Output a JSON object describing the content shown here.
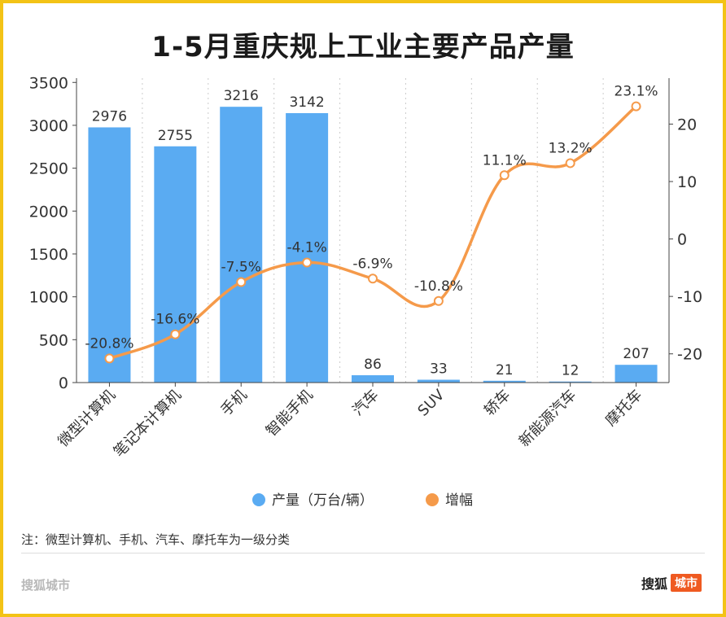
{
  "title": "1-5月重庆规上工业主要产品产量",
  "note": "注：微型计算机、手机、汽车、摩托车为一级分类",
  "watermark_left": "搜狐城市",
  "watermark_right": {
    "brand": "搜狐",
    "badge": "城市"
  },
  "colors": {
    "bar": "#5aabf2",
    "line": "#f59a4a",
    "border": "#f3c316",
    "badge": "#ef5a21"
  },
  "chart_data": {
    "type": "bar",
    "categories": [
      "微型计算机",
      "笔记本计算机",
      "手机",
      "智能手机",
      "汽车",
      "SUV",
      "轿车",
      "新能源汽车",
      "摩托车"
    ],
    "series": [
      {
        "name": "产量（万台/辆）",
        "type": "bar",
        "axis": "left",
        "values": [
          2976,
          2755,
          3216,
          3142,
          86,
          33,
          21,
          12,
          207
        ]
      },
      {
        "name": "增幅",
        "type": "line",
        "axis": "right",
        "values": [
          -20.8,
          -16.6,
          -7.5,
          -4.1,
          -6.9,
          -10.8,
          11.1,
          13.2,
          23.1
        ],
        "unit": "%"
      }
    ],
    "y_left": {
      "ticks": [
        0,
        500,
        1000,
        1500,
        2000,
        2500,
        3000,
        3500
      ],
      "range": [
        0,
        3550
      ]
    },
    "y_right": {
      "ticks": [
        -20,
        -10,
        0,
        10,
        20
      ],
      "range": [
        -25,
        28
      ]
    },
    "grid": "vertical dashed",
    "legend": "bottom-center"
  }
}
